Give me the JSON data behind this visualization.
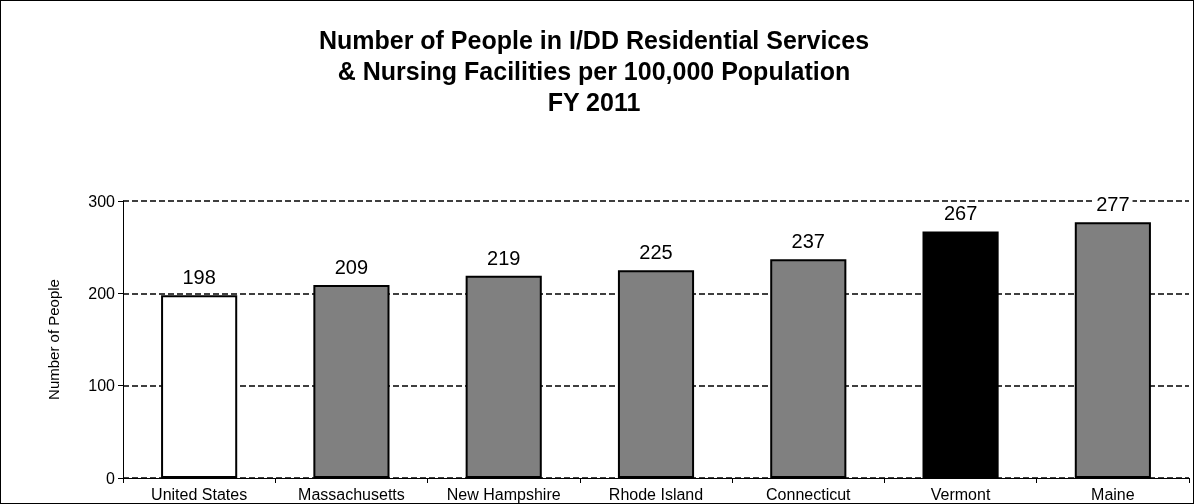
{
  "chart_data": {
    "type": "bar",
    "title": "Number of People in I/DD Residential Services\n& Nursing Facilities per 100,000 Population\nFY 2011",
    "ylabel": "Number of People",
    "categories": [
      "United States",
      "Massachusetts",
      "New Hampshire",
      "Rhode Island",
      "Connecticut",
      "Vermont",
      "Maine"
    ],
    "values": [
      198,
      209,
      219,
      225,
      237,
      267,
      277
    ],
    "colors": [
      "#ffffff",
      "#808080",
      "#808080",
      "#808080",
      "#808080",
      "#000000",
      "#808080"
    ],
    "ylim": [
      0,
      300
    ],
    "yticks": [
      0,
      100,
      200,
      300
    ],
    "grid": "y",
    "data_labels": true
  }
}
